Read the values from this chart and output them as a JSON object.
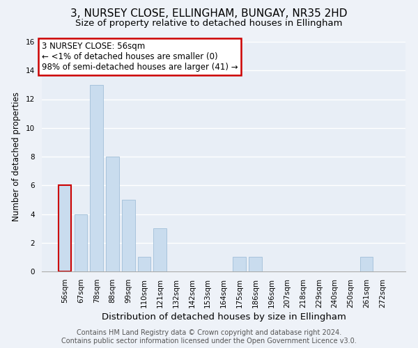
{
  "title": "3, NURSEY CLOSE, ELLINGHAM, BUNGAY, NR35 2HD",
  "subtitle": "Size of property relative to detached houses in Ellingham",
  "xlabel": "Distribution of detached houses by size in Ellingham",
  "ylabel": "Number of detached properties",
  "bar_labels": [
    "56sqm",
    "67sqm",
    "78sqm",
    "88sqm",
    "99sqm",
    "110sqm",
    "121sqm",
    "132sqm",
    "142sqm",
    "153sqm",
    "164sqm",
    "175sqm",
    "186sqm",
    "196sqm",
    "207sqm",
    "218sqm",
    "229sqm",
    "240sqm",
    "250sqm",
    "261sqm",
    "272sqm"
  ],
  "bar_values": [
    6,
    4,
    13,
    8,
    5,
    1,
    3,
    0,
    0,
    0,
    0,
    1,
    1,
    0,
    0,
    0,
    0,
    0,
    0,
    1,
    0
  ],
  "highlight_index": 0,
  "bar_color": "#c9dcee",
  "highlight_edge_color": "#cc0000",
  "normal_edge_color": "#a8c4dc",
  "annotation_text": "3 NURSEY CLOSE: 56sqm\n← <1% of detached houses are smaller (0)\n98% of semi-detached houses are larger (41) →",
  "annotation_box_color": "#ffffff",
  "annotation_border_color": "#cc0000",
  "ylim": [
    0,
    16
  ],
  "yticks": [
    0,
    2,
    4,
    6,
    8,
    10,
    12,
    14,
    16
  ],
  "footer_line1": "Contains HM Land Registry data © Crown copyright and database right 2024.",
  "footer_line2": "Contains public sector information licensed under the Open Government Licence v3.0.",
  "background_color": "#eef2f8",
  "plot_bg_color": "#e8eef6",
  "grid_color": "#ffffff",
  "title_fontsize": 11,
  "subtitle_fontsize": 9.5,
  "xlabel_fontsize": 9.5,
  "ylabel_fontsize": 8.5,
  "footer_fontsize": 7.0,
  "tick_fontsize": 7.5,
  "annotation_fontsize": 8.5
}
